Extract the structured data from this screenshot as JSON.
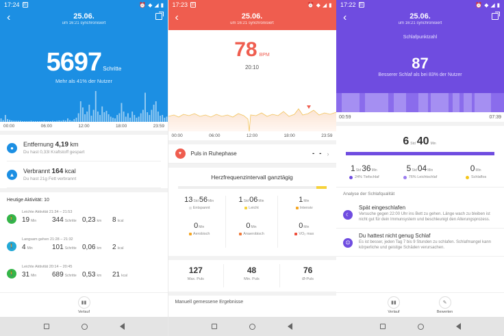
{
  "steps_screen": {
    "status": {
      "time": "17:24",
      "badge": "31"
    },
    "header": {
      "date": "25.06.",
      "sync": "um 16:21 synchronisiert"
    },
    "steps": {
      "value": "5697",
      "unit": "Schritte",
      "comparison": "Mehr als 41% der Nutzer"
    },
    "axis": [
      "00:00",
      "06:00",
      "12:00",
      "18:00",
      "23:59"
    ],
    "bar_levels": [
      0.1,
      0.05,
      0.2,
      0.08,
      0.06,
      0.04,
      0.03,
      0.03,
      0.03,
      0.03,
      0.02,
      0.02,
      0.02,
      0.02,
      0.03,
      0.02,
      0.02,
      0.02,
      0.02,
      0.02,
      0.03,
      0.02,
      0.02,
      0.02,
      0.03,
      0.02,
      0.03,
      0.04,
      0.03,
      0.05,
      0.04,
      0.1,
      0.05,
      0.03,
      0.08,
      0.12,
      0.25,
      0.6,
      0.42,
      0.22,
      0.3,
      0.5,
      0.18,
      0.35,
      0.9,
      0.3,
      0.2,
      0.45,
      0.28,
      0.32,
      0.22,
      0.15,
      0.12,
      0.1,
      0.2,
      0.25,
      0.55,
      0.3,
      0.15,
      0.25,
      0.12,
      0.3,
      0.2,
      0.12,
      0.15,
      0.25,
      0.35,
      0.85,
      0.28,
      0.2,
      0.35,
      0.5,
      0.6,
      0.3,
      0.18,
      0.2,
      0.12,
      0.15
    ],
    "distance": {
      "label": "Entfernung",
      "value": "4,19",
      "unit": "km",
      "sub": "Du hast 0,33l Kraftstoff gespart"
    },
    "calories": {
      "label": "Verbrannt",
      "value": "164",
      "unit": "kcal",
      "sub": "Du hast 21g Fett verbrannt"
    },
    "activity_title": "Heutige Aktivität:",
    "activity_count": "10",
    "activities": [
      {
        "name": "Leichte Aktivität 21:34 – 21:53",
        "duration": "19",
        "duration_unit": "Min",
        "steps": "344",
        "steps_unit": "Schritte",
        "distance": "0,23",
        "distance_unit": "km",
        "kcal": "8",
        "kcal_unit": "kcal",
        "icon": "walking-icon"
      },
      {
        "name": "Langsam gehen 21:28 – 21:32",
        "duration": "4",
        "duration_unit": "Min",
        "steps": "101",
        "steps_unit": "Schritte",
        "distance": "0,06",
        "distance_unit": "km",
        "kcal": "2",
        "kcal_unit": "kcal",
        "icon": "walking-icon"
      },
      {
        "name": "Leichte Aktivität 20:14 – 20:45",
        "duration": "31",
        "duration_unit": "Min",
        "steps": "689",
        "steps_unit": "Schritte",
        "distance": "0,53",
        "distance_unit": "km",
        "kcal": "21",
        "kcal_unit": "kcal",
        "icon": "walking-icon"
      }
    ],
    "footer": {
      "label": "Verlauf"
    }
  },
  "heart_screen": {
    "status": {
      "time": "17:23",
      "badge": "31"
    },
    "header": {
      "date": "25.06.",
      "sync": "um 16:21 synchronisiert"
    },
    "bpm": {
      "value": "78",
      "unit": "BPM",
      "time": "20:10"
    },
    "axis": [
      "00:00",
      "06:00",
      "12:00",
      "18:00",
      "23:59"
    ],
    "resting": {
      "label": "Puls in Ruhephase",
      "value": "- -"
    },
    "zones_title": "Herzfrequenzintervall ganztägig",
    "zones": [
      {
        "h": "13",
        "h_unit": "Std",
        "m": "56",
        "m_unit": "Min",
        "label": "Entspannt",
        "color": "#e0e0e0"
      },
      {
        "h": "1",
        "h_unit": "Std",
        "m": "06",
        "m_unit": "Min",
        "label": "Leicht",
        "color": "#f6d23a"
      },
      {
        "h": "",
        "h_unit": "",
        "m": "1",
        "m_unit": "Min",
        "label": "Intensiv",
        "color": "#f5a623"
      },
      {
        "h": "",
        "h_unit": "",
        "m": "0",
        "m_unit": "Min",
        "label": "Aerobisch",
        "color": "#f5a623"
      },
      {
        "h": "",
        "h_unit": "",
        "m": "0",
        "m_unit": "Min",
        "label": "Anaerobisch",
        "color": "#ef7a3a"
      },
      {
        "h": "",
        "h_unit": "",
        "m": "0",
        "m_unit": "Min",
        "label": "VO₂ max",
        "color": "#ef4d3a"
      }
    ],
    "stats": [
      {
        "value": "127",
        "label": "Max. Puls"
      },
      {
        "value": "48",
        "label": "Min. Puls"
      },
      {
        "value": "76",
        "label": "Ø-Puls"
      }
    ],
    "manual": "Manuell gemessene Ergebnisse"
  },
  "sleep_screen": {
    "status": {
      "time": "17:22",
      "badge": "31"
    },
    "header": {
      "date": "25.06.",
      "sync": "um 16:21 synchronisiert"
    },
    "score_title": "Schlafpunktzahl",
    "score": "87",
    "score_sub": "Besserer Schlaf als bei 83% der Nutzer",
    "axis": [
      "00:59",
      "07:39"
    ],
    "total": {
      "h": "6",
      "h_unit": "Std",
      "m": "40",
      "m_unit": "Min"
    },
    "phases": [
      {
        "h": "1",
        "h_unit": "Std",
        "m": "36",
        "m_unit": "Min",
        "label": "24% Tiefschlaf",
        "color": "#6f4ce0"
      },
      {
        "h": "5",
        "h_unit": "Std",
        "m": "04",
        "m_unit": "Min",
        "label": "76% Leichtschlaf",
        "color": "#9b7cf0"
      },
      {
        "h": "",
        "h_unit": "",
        "m": "0",
        "m_unit": "Min",
        "label": "Schlaflos",
        "color": "#f5c518"
      }
    ],
    "analysis_title": "Analyse der Schlafqualität",
    "analysis": [
      {
        "title": "Spät eingeschlafen",
        "text": "Versuche gegen 22:00 Uhr ins Bett zu gehen. Länge wach zu bleiben ist nicht gut für dein Immunsystem und beschleunigt den Alterungsprozess.",
        "icon": "moon-icon"
      },
      {
        "title": "Du hattest nicht genug Schlaf",
        "text": "Es ist besser, jeden Tag 7 bis 9 Stunden zu schlafen. Schlafmangel kann körperliche und geistige Schäden verursachen.",
        "icon": "sad-face-icon"
      }
    ],
    "footer": {
      "history": "Verlauf",
      "rate": "Bewerten"
    }
  }
}
